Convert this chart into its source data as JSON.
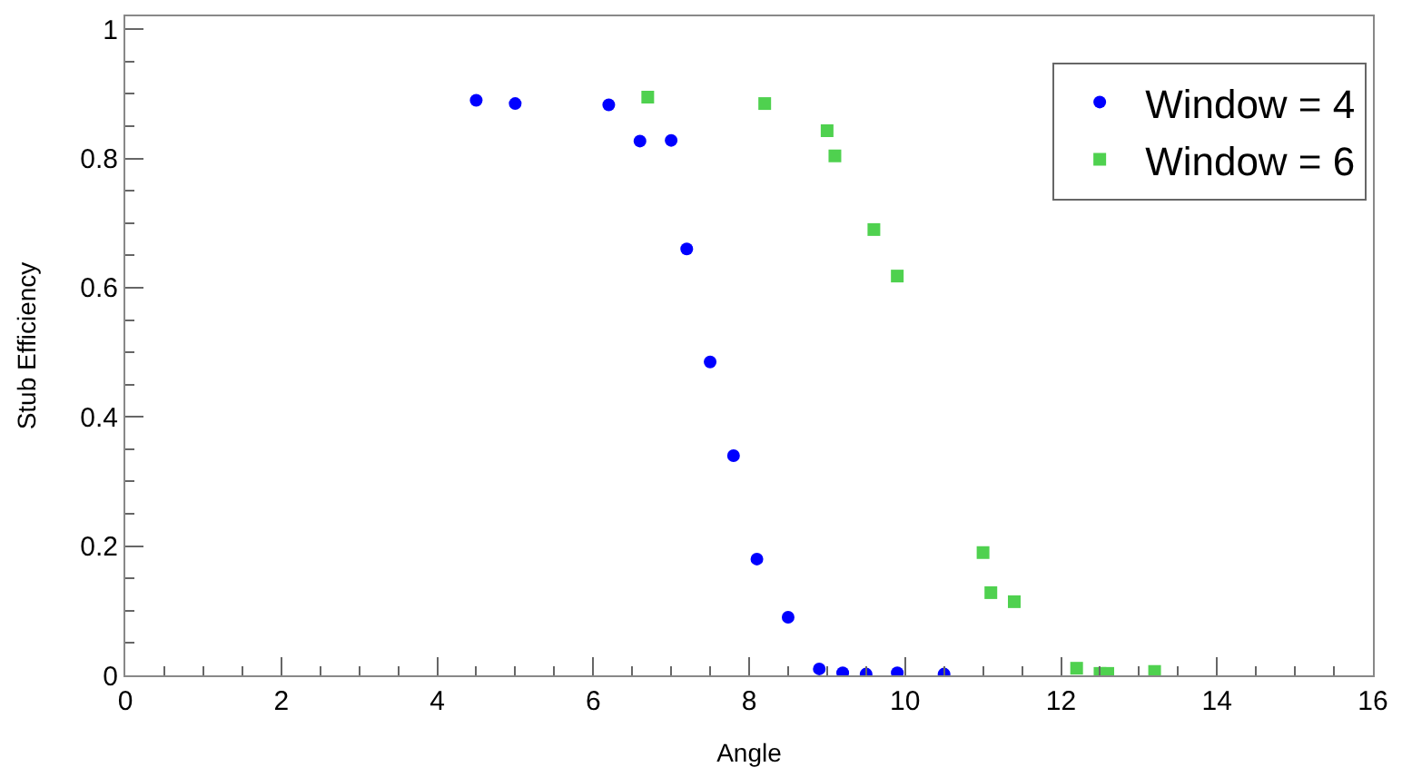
{
  "chart_data": {
    "type": "scatter",
    "xlabel": "Angle",
    "ylabel": "Stub Efficiency",
    "xlim": [
      0,
      16
    ],
    "xticks": [
      0,
      2,
      4,
      6,
      8,
      10,
      12,
      14,
      16
    ],
    "ylim": [
      0,
      1.02
    ],
    "yticks": [
      0,
      0.2,
      0.4,
      0.6,
      0.8,
      1
    ],
    "legend": "top right",
    "series": [
      {
        "name": "Window = 4",
        "color": "#0000ff",
        "marker": "circle",
        "x": [
          4.5,
          5,
          6.2,
          6.6,
          7,
          7.2,
          7.5,
          7.8,
          8.1,
          8.5,
          8.9,
          9.2,
          9.5,
          9.9,
          10.5
        ],
        "values": [
          0.89,
          0.885,
          0.883,
          0.827,
          0.828,
          0.66,
          0.485,
          0.34,
          0.18,
          0.09,
          0.01,
          0.004,
          0.002,
          0.004,
          0.002
        ]
      },
      {
        "name": "Window = 6",
        "color": "#4fd14f",
        "marker": "square",
        "x": [
          6.7,
          8.2,
          9,
          9.1,
          9.6,
          9.9,
          11,
          11.1,
          11.4,
          12.2,
          12.5,
          12.6,
          13.2
        ],
        "values": [
          0.895,
          0.885,
          0.843,
          0.804,
          0.69,
          0.618,
          0.19,
          0.128,
          0.114,
          0.011,
          0.003,
          0.003,
          0.006
        ]
      }
    ]
  }
}
